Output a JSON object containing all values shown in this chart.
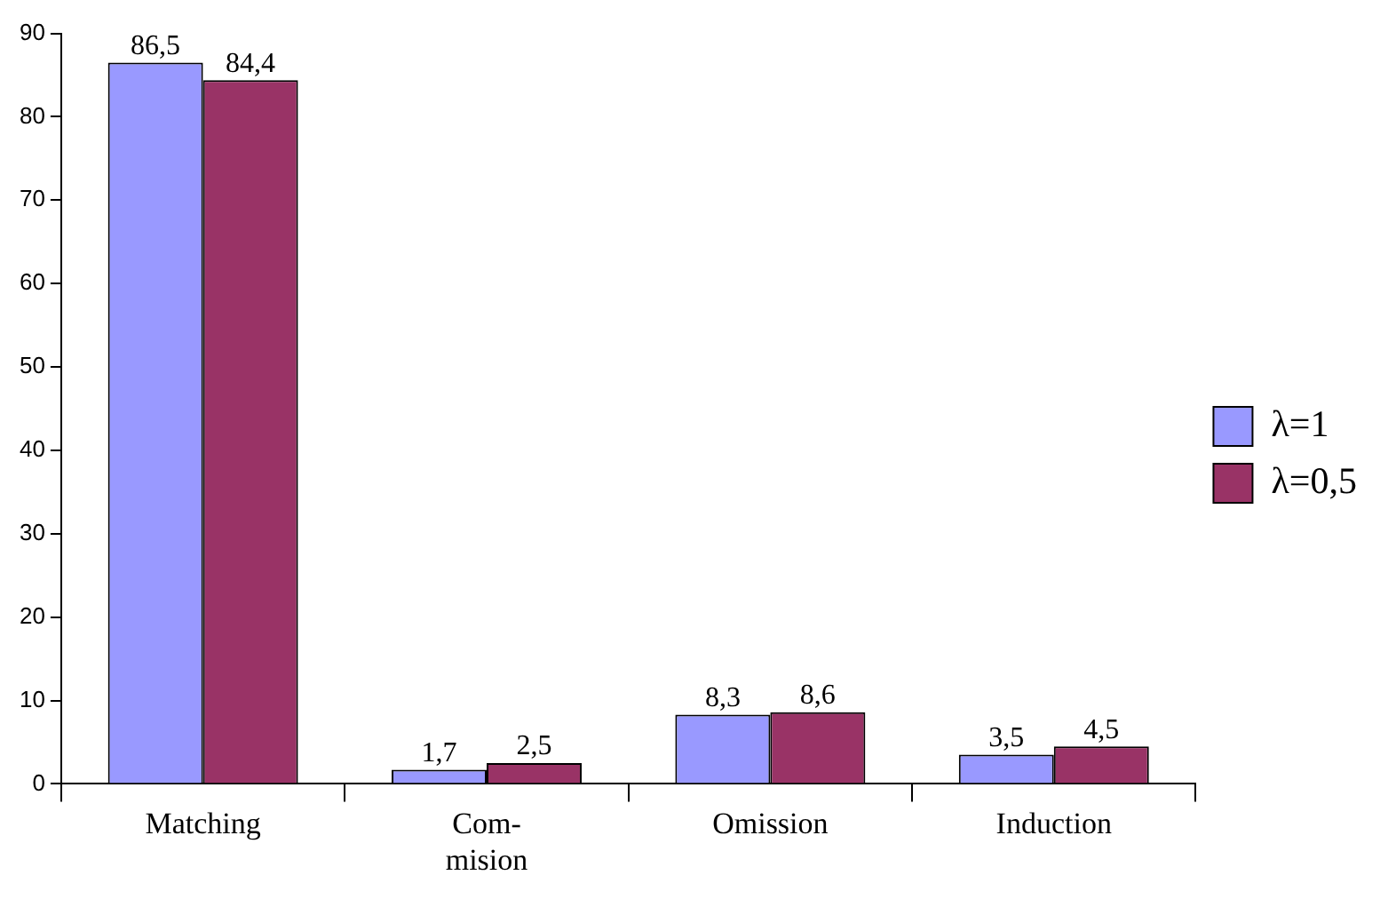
{
  "chart_data": {
    "type": "bar",
    "categories": [
      "Matching",
      "Com-\nmision",
      "Omission",
      "Induction"
    ],
    "series": [
      {
        "name": "λ=1",
        "color": "#9999ff",
        "values": [
          86.5,
          1.7,
          8.3,
          3.5
        ],
        "value_labels": [
          "86,5",
          "1,7",
          "8,3",
          "3,5"
        ]
      },
      {
        "name": "λ=0,5",
        "color": "#993366",
        "values": [
          84.4,
          2.5,
          8.6,
          4.5
        ],
        "value_labels": [
          "84,4",
          "2,5",
          "8,6",
          "4,5"
        ]
      }
    ],
    "ylim": [
      0,
      90
    ],
    "yticks": [
      0,
      10,
      20,
      30,
      40,
      50,
      60,
      70,
      80,
      90
    ],
    "grid": false,
    "legend": "right"
  }
}
